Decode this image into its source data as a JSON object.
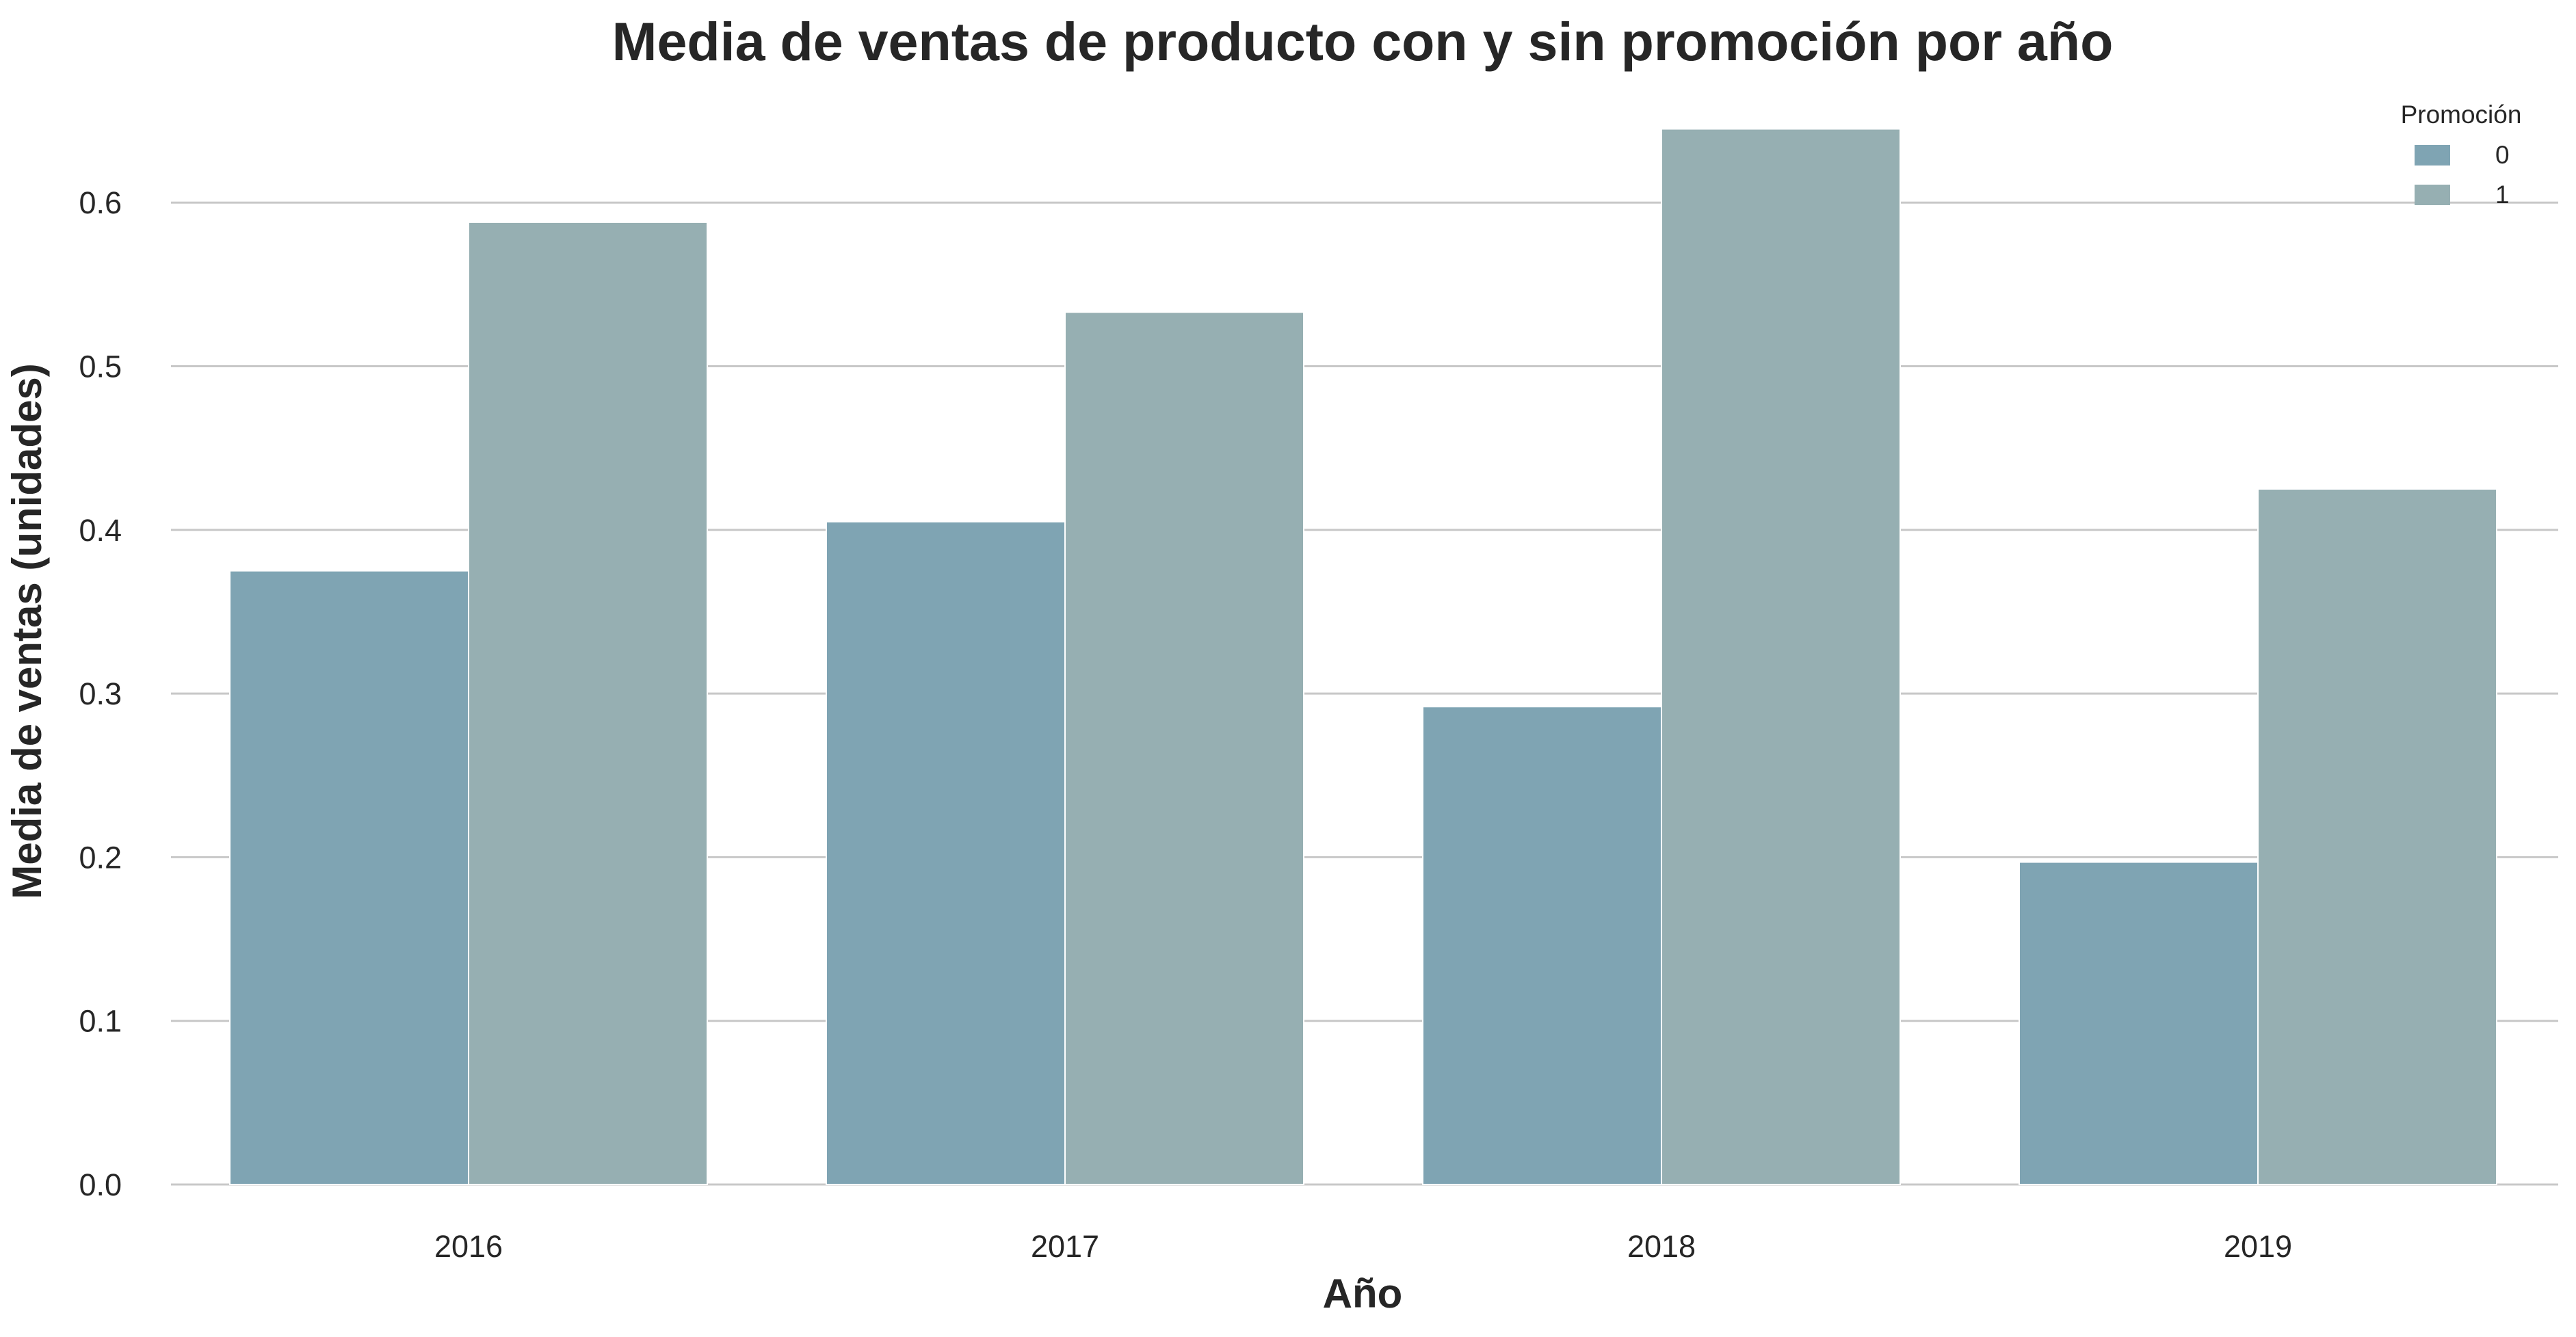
{
  "chart_data": {
    "type": "bar",
    "title": "Media de ventas de producto con y sin promoción por año",
    "xlabel": "Año",
    "ylabel": "Media de ventas (unidades)",
    "categories": [
      "2016",
      "2017",
      "2018",
      "2019"
    ],
    "series": [
      {
        "name": "0",
        "values": [
          0.375,
          0.405,
          0.292,
          0.197
        ],
        "color": "#7fa4b3"
      },
      {
        "name": "1",
        "values": [
          0.588,
          0.533,
          0.645,
          0.425
        ],
        "color": "#96afb2"
      }
    ],
    "ylim": [
      0,
      0.65
    ],
    "yticks": [
      "0.0",
      "0.1",
      "0.2",
      "0.3",
      "0.4",
      "0.5",
      "0.6"
    ],
    "grid": "horizontal",
    "legend": {
      "title": "Promoción",
      "position": "top-right"
    }
  }
}
